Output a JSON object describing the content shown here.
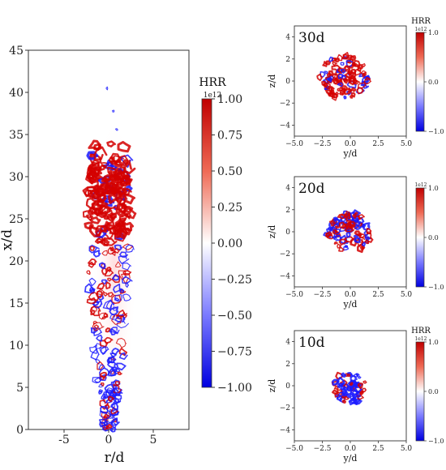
{
  "colors": {
    "positive": "#d40000",
    "negative": "#1a1aff",
    "zero": "#ffffff",
    "frame": "#333333"
  },
  "chart_data": [
    {
      "id": "main",
      "type": "heatmap",
      "xlabel": "r/d",
      "ylabel": "x/d",
      "xlim": [
        -9,
        9
      ],
      "ylim": [
        0,
        45
      ],
      "xticks": [
        -5,
        0,
        5
      ],
      "yticks": [
        0,
        5,
        10,
        15,
        20,
        25,
        30,
        35,
        40,
        45
      ],
      "grid": false
    },
    {
      "id": "main-colorbar",
      "type": "colorbar",
      "title": "HRR",
      "multiplier": "1e12",
      "range": [
        -1.0,
        1.0
      ],
      "ticks": [
        "1.00",
        "0.75",
        "0.50",
        "0.25",
        "0.00",
        "−0.25",
        "−0.50",
        "−0.75",
        "−1.00"
      ]
    },
    {
      "id": "slice-30d",
      "type": "heatmap",
      "label": "30d",
      "xlabel": "y/d",
      "ylabel": "z/d",
      "xlim": [
        -5,
        5
      ],
      "ylim": [
        -5,
        5
      ],
      "xticks": [
        "−5.0",
        "−2.5",
        "0.0",
        "2.5",
        "5.0"
      ],
      "yticks": [
        "4",
        "2",
        "0",
        "−2",
        "−4"
      ],
      "colorbar": {
        "title": "HRR",
        "multiplier": "1e12",
        "ticks": [
          "1.0",
          "0.0",
          "−1.0"
        ]
      }
    },
    {
      "id": "slice-20d",
      "type": "heatmap",
      "label": "20d",
      "xlabel": "y/d",
      "ylabel": "z/d",
      "xlim": [
        -5,
        5
      ],
      "ylim": [
        -5,
        5
      ],
      "xticks": [
        "−5.0",
        "−2.5",
        "0.0",
        "2.5",
        "5.0"
      ],
      "yticks": [
        "4",
        "2",
        "0",
        "−2",
        "−4"
      ],
      "colorbar": {
        "title": "",
        "multiplier": "1e12",
        "ticks": [
          "1.0",
          "0.0",
          "−1.0"
        ]
      }
    },
    {
      "id": "slice-10d",
      "type": "heatmap",
      "label": "10d",
      "xlabel": "y/d",
      "ylabel": "z/d",
      "xlim": [
        -5,
        5
      ],
      "ylim": [
        -5,
        5
      ],
      "xticks": [
        "−5.0",
        "−2.5",
        "0.0",
        "2.5",
        "5.0"
      ],
      "yticks": [
        "4",
        "2",
        "0",
        "−2",
        "−4"
      ],
      "colorbar": {
        "title": "HRR",
        "multiplier": "1e12",
        "ticks": [
          "1.0",
          "0.0",
          "−1.0"
        ]
      }
    }
  ]
}
